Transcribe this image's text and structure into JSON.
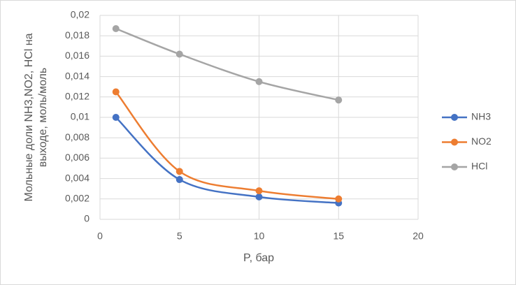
{
  "chart_data": {
    "type": "line",
    "xlabel": "P, бар",
    "ylabel": [
      "Мольные доли NH3,NO2, HCl на",
      "выходе, моль/моль"
    ],
    "x": [
      1,
      5,
      10,
      15
    ],
    "series": [
      {
        "name": "NH3",
        "color": "#4472c4",
        "values": [
          0.01,
          0.0039,
          0.0022,
          0.0016
        ]
      },
      {
        "name": "NO2",
        "color": "#ed7d31",
        "values": [
          0.0125,
          0.0047,
          0.0028,
          0.002
        ]
      },
      {
        "name": "HCl",
        "color": "#a5a5a5",
        "values": [
          0.0187,
          0.0162,
          0.0135,
          0.0117
        ]
      }
    ],
    "xlim": [
      0,
      20
    ],
    "xticks": [
      0,
      5,
      10,
      15,
      20
    ],
    "ylim": [
      0,
      0.02
    ],
    "yticks": [
      0,
      {
        "value": 0.002,
        "label": "0,002"
      },
      {
        "value": 0.004,
        "label": "0,004"
      },
      {
        "value": 0.006,
        "label": "0,006"
      },
      {
        "value": 0.008,
        "label": "0,008"
      },
      {
        "value": 0.01,
        "label": "0,01"
      },
      {
        "value": 0.012,
        "label": "0,012"
      },
      {
        "value": 0.014,
        "label": "0,014"
      },
      {
        "value": 0.016,
        "label": "0,016"
      },
      {
        "value": 0.018,
        "label": "0,018"
      },
      {
        "value": 0.02,
        "label": "0,02"
      }
    ],
    "grid": true,
    "legend": "right",
    "smooth": true
  }
}
